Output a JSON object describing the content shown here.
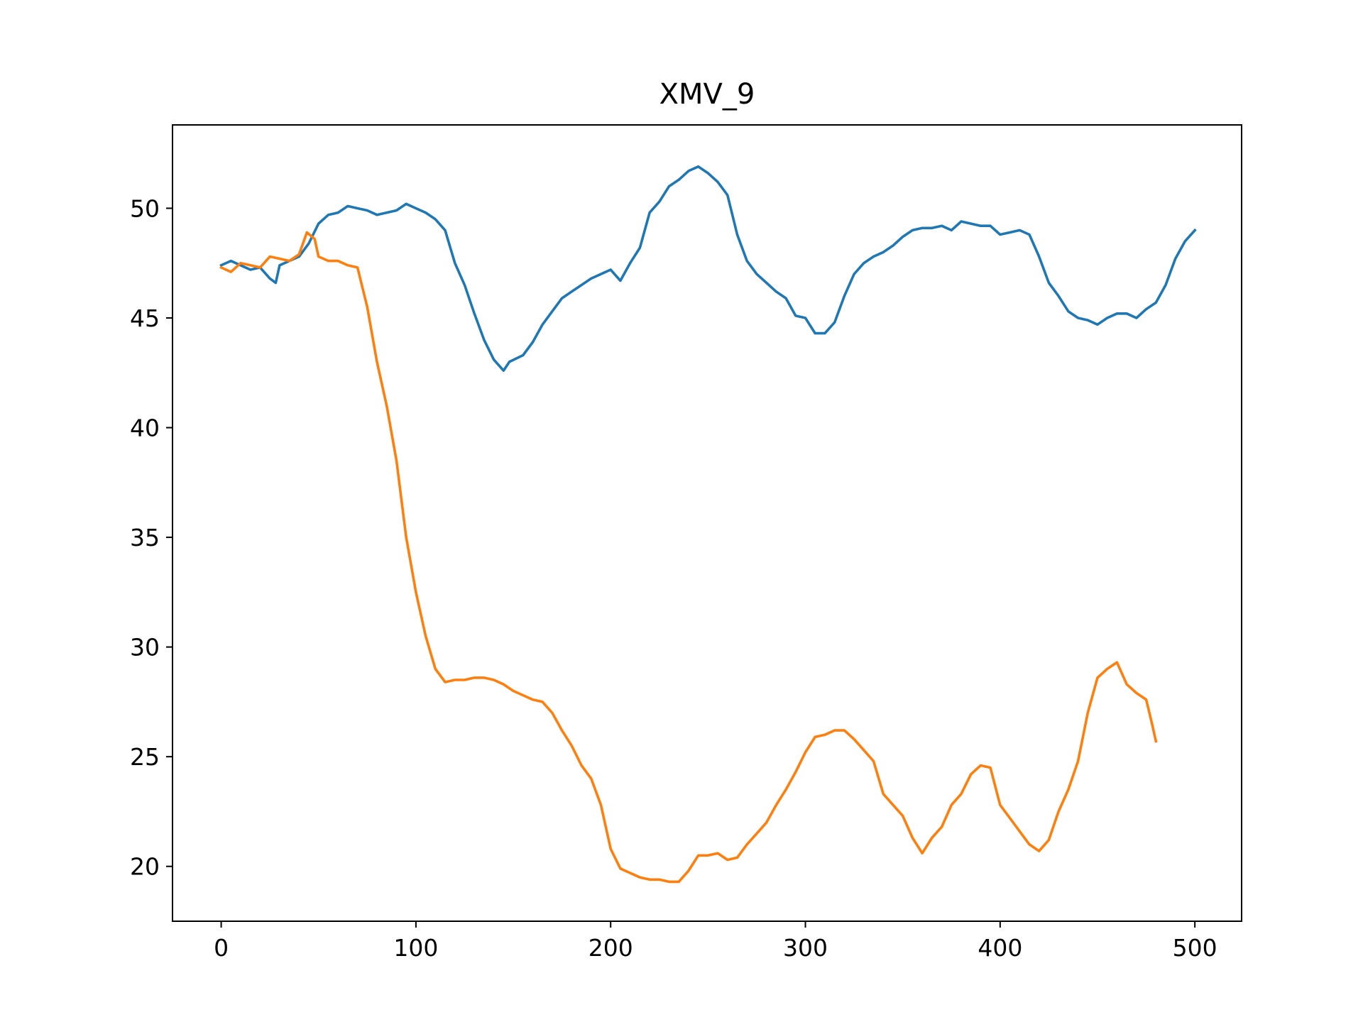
{
  "chart_data": {
    "type": "line",
    "title": "XMV_9",
    "xlabel": "",
    "ylabel": "",
    "xlim": [
      -25,
      524
    ],
    "ylim": [
      17.5,
      53.8
    ],
    "xticks": [
      0,
      100,
      200,
      300,
      400,
      500
    ],
    "yticks": [
      20,
      25,
      30,
      35,
      40,
      45,
      50
    ],
    "grid": false,
    "legend": "none",
    "series": [
      {
        "color": "#1f77b4",
        "points": [
          [
            0,
            47.4
          ],
          [
            5,
            47.6
          ],
          [
            10,
            47.4
          ],
          [
            15,
            47.2
          ],
          [
            20,
            47.3
          ],
          [
            25,
            46.8
          ],
          [
            28,
            46.6
          ],
          [
            30,
            47.4
          ],
          [
            35,
            47.6
          ],
          [
            40,
            47.8
          ],
          [
            45,
            48.4
          ],
          [
            50,
            49.3
          ],
          [
            55,
            49.7
          ],
          [
            60,
            49.8
          ],
          [
            65,
            50.1
          ],
          [
            70,
            50.0
          ],
          [
            75,
            49.9
          ],
          [
            80,
            49.7
          ],
          [
            85,
            49.8
          ],
          [
            90,
            49.9
          ],
          [
            95,
            50.2
          ],
          [
            100,
            50.0
          ],
          [
            105,
            49.8
          ],
          [
            110,
            49.5
          ],
          [
            115,
            49.0
          ],
          [
            120,
            47.5
          ],
          [
            125,
            46.5
          ],
          [
            130,
            45.2
          ],
          [
            135,
            44.0
          ],
          [
            140,
            43.1
          ],
          [
            145,
            42.6
          ],
          [
            148,
            43.0
          ],
          [
            155,
            43.3
          ],
          [
            160,
            43.9
          ],
          [
            165,
            44.7
          ],
          [
            170,
            45.3
          ],
          [
            175,
            45.9
          ],
          [
            180,
            46.2
          ],
          [
            185,
            46.5
          ],
          [
            190,
            46.8
          ],
          [
            195,
            47.0
          ],
          [
            200,
            47.2
          ],
          [
            205,
            46.7
          ],
          [
            210,
            47.5
          ],
          [
            215,
            48.2
          ],
          [
            220,
            49.8
          ],
          [
            225,
            50.3
          ],
          [
            230,
            51.0
          ],
          [
            235,
            51.3
          ],
          [
            240,
            51.7
          ],
          [
            245,
            51.9
          ],
          [
            250,
            51.6
          ],
          [
            255,
            51.2
          ],
          [
            260,
            50.6
          ],
          [
            265,
            48.8
          ],
          [
            270,
            47.6
          ],
          [
            275,
            47.0
          ],
          [
            280,
            46.6
          ],
          [
            285,
            46.2
          ],
          [
            290,
            45.9
          ],
          [
            295,
            45.1
          ],
          [
            300,
            45.0
          ],
          [
            305,
            44.3
          ],
          [
            310,
            44.3
          ],
          [
            315,
            44.8
          ],
          [
            320,
            46.0
          ],
          [
            325,
            47.0
          ],
          [
            330,
            47.5
          ],
          [
            335,
            47.8
          ],
          [
            340,
            48.0
          ],
          [
            345,
            48.3
          ],
          [
            350,
            48.7
          ],
          [
            355,
            49.0
          ],
          [
            360,
            49.1
          ],
          [
            365,
            49.1
          ],
          [
            370,
            49.2
          ],
          [
            375,
            49.0
          ],
          [
            380,
            49.4
          ],
          [
            385,
            49.3
          ],
          [
            390,
            49.2
          ],
          [
            395,
            49.2
          ],
          [
            400,
            48.8
          ],
          [
            405,
            48.9
          ],
          [
            410,
            49.0
          ],
          [
            415,
            48.8
          ],
          [
            420,
            47.8
          ],
          [
            425,
            46.6
          ],
          [
            430,
            46.0
          ],
          [
            435,
            45.3
          ],
          [
            440,
            45.0
          ],
          [
            445,
            44.9
          ],
          [
            450,
            44.7
          ],
          [
            455,
            45.0
          ],
          [
            460,
            45.2
          ],
          [
            465,
            45.2
          ],
          [
            470,
            45.0
          ],
          [
            475,
            45.4
          ],
          [
            480,
            45.7
          ],
          [
            485,
            46.5
          ],
          [
            490,
            47.7
          ],
          [
            495,
            48.5
          ],
          [
            500,
            49.0
          ]
        ]
      },
      {
        "color": "#ff7f0e",
        "points": [
          [
            0,
            47.3
          ],
          [
            5,
            47.1
          ],
          [
            10,
            47.5
          ],
          [
            15,
            47.4
          ],
          [
            20,
            47.3
          ],
          [
            25,
            47.8
          ],
          [
            30,
            47.7
          ],
          [
            35,
            47.6
          ],
          [
            40,
            47.9
          ],
          [
            44,
            48.9
          ],
          [
            48,
            48.6
          ],
          [
            50,
            47.8
          ],
          [
            55,
            47.6
          ],
          [
            60,
            47.6
          ],
          [
            65,
            47.4
          ],
          [
            70,
            47.3
          ],
          [
            75,
            45.5
          ],
          [
            80,
            43.0
          ],
          [
            85,
            41.0
          ],
          [
            90,
            38.5
          ],
          [
            95,
            35.0
          ],
          [
            100,
            32.5
          ],
          [
            105,
            30.5
          ],
          [
            110,
            29.0
          ],
          [
            115,
            28.4
          ],
          [
            120,
            28.5
          ],
          [
            125,
            28.5
          ],
          [
            130,
            28.6
          ],
          [
            135,
            28.6
          ],
          [
            140,
            28.5
          ],
          [
            145,
            28.3
          ],
          [
            150,
            28.0
          ],
          [
            155,
            27.8
          ],
          [
            160,
            27.6
          ],
          [
            165,
            27.5
          ],
          [
            170,
            27.0
          ],
          [
            175,
            26.2
          ],
          [
            180,
            25.5
          ],
          [
            185,
            24.6
          ],
          [
            190,
            24.0
          ],
          [
            195,
            22.8
          ],
          [
            200,
            20.8
          ],
          [
            205,
            19.9
          ],
          [
            210,
            19.7
          ],
          [
            215,
            19.5
          ],
          [
            220,
            19.4
          ],
          [
            225,
            19.4
          ],
          [
            230,
            19.3
          ],
          [
            235,
            19.3
          ],
          [
            240,
            19.8
          ],
          [
            245,
            20.5
          ],
          [
            250,
            20.5
          ],
          [
            255,
            20.6
          ],
          [
            260,
            20.3
          ],
          [
            265,
            20.4
          ],
          [
            270,
            21.0
          ],
          [
            275,
            21.5
          ],
          [
            280,
            22.0
          ],
          [
            285,
            22.8
          ],
          [
            290,
            23.5
          ],
          [
            295,
            24.3
          ],
          [
            300,
            25.2
          ],
          [
            305,
            25.9
          ],
          [
            310,
            26.0
          ],
          [
            315,
            26.2
          ],
          [
            320,
            26.2
          ],
          [
            325,
            25.8
          ],
          [
            330,
            25.3
          ],
          [
            335,
            24.8
          ],
          [
            340,
            23.3
          ],
          [
            345,
            22.8
          ],
          [
            350,
            22.3
          ],
          [
            355,
            21.3
          ],
          [
            360,
            20.6
          ],
          [
            365,
            21.3
          ],
          [
            370,
            21.8
          ],
          [
            375,
            22.8
          ],
          [
            380,
            23.3
          ],
          [
            385,
            24.2
          ],
          [
            390,
            24.6
          ],
          [
            395,
            24.5
          ],
          [
            400,
            22.8
          ],
          [
            405,
            22.2
          ],
          [
            410,
            21.6
          ],
          [
            415,
            21.0
          ],
          [
            420,
            20.7
          ],
          [
            425,
            21.2
          ],
          [
            430,
            22.5
          ],
          [
            435,
            23.5
          ],
          [
            440,
            24.8
          ],
          [
            445,
            27.0
          ],
          [
            450,
            28.6
          ],
          [
            455,
            29.0
          ],
          [
            460,
            29.3
          ],
          [
            465,
            28.3
          ],
          [
            470,
            27.9
          ],
          [
            475,
            27.6
          ],
          [
            478,
            26.5
          ],
          [
            480,
            25.7
          ]
        ]
      }
    ]
  }
}
